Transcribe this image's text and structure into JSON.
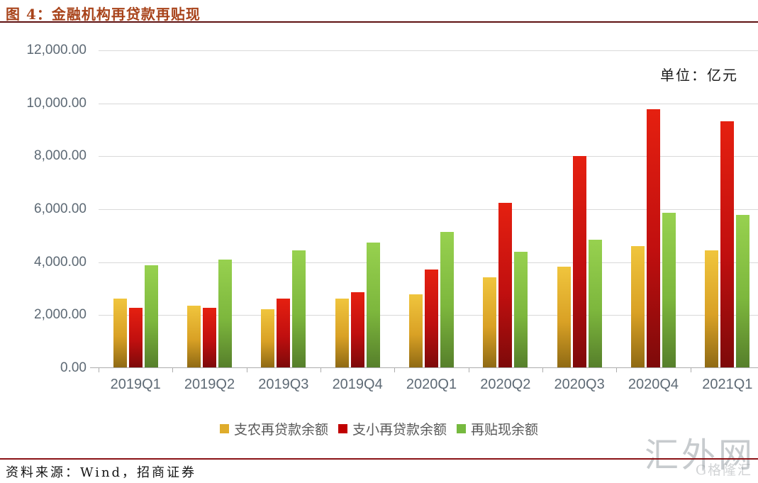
{
  "header": {
    "title": "图 4：金融机构再贷款再贴现"
  },
  "chart": {
    "unit_label": "单位：亿元",
    "watermark": "汇外网",
    "watermark_secondary": "G格隆汇"
  },
  "chart_data": {
    "type": "bar",
    "title": "图 4：金融机构再贷款再贴现",
    "unit": "亿元",
    "categories": [
      "2019Q1",
      "2019Q2",
      "2019Q3",
      "2019Q4",
      "2020Q1",
      "2020Q2",
      "2020Q3",
      "2020Q4",
      "2021Q1"
    ],
    "series": [
      {
        "name": "支农再贷款余额",
        "legend_color": "#DFAC2B",
        "gradient": [
          "#F0C53D",
          "#D9A125",
          "#8F6A14"
        ],
        "values": [
          2590,
          2330,
          2210,
          2600,
          2770,
          3390,
          3800,
          4570,
          4430
        ]
      },
      {
        "name": "支小再贷款余额",
        "legend_color": "#C00000",
        "gradient": [
          "#E52010",
          "#C00F0F",
          "#7D0A0A"
        ],
        "values": [
          2260,
          2250,
          2610,
          2830,
          3690,
          6210,
          7980,
          9760,
          9300
        ]
      },
      {
        "name": "再贴现余额",
        "legend_color": "#76B93F",
        "gradient": [
          "#97D14F",
          "#7DB73D",
          "#567F2B"
        ],
        "values": [
          3860,
          4070,
          4410,
          4710,
          5110,
          4360,
          4810,
          5840,
          5770
        ]
      }
    ],
    "ylim": [
      0,
      12000
    ],
    "ytick_step": 2000,
    "ytick_labels": [
      "12,000.00",
      "10,000.00",
      "8,000.00",
      "6,000.00",
      "4,000.00",
      "2,000.00",
      "0.00"
    ],
    "grid": true,
    "legend_position": "bottom"
  },
  "footer": {
    "source": "资料来源：Wind，招商证券"
  }
}
